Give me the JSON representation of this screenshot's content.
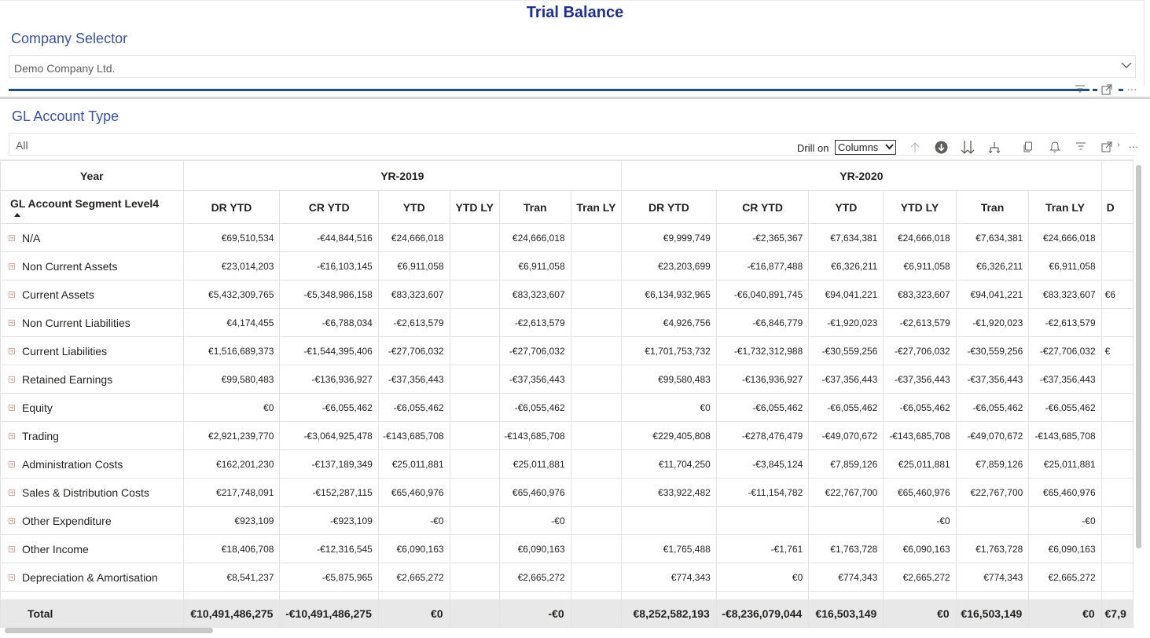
{
  "page": {
    "title": "Trial Balance"
  },
  "company_slicer": {
    "title": "Company Selector",
    "value": "Demo Company Ltd."
  },
  "gl_slicer": {
    "title": "GL Account Type",
    "value": "All"
  },
  "visual_toolbar": {
    "drill_label": "Drill on",
    "drill_value": "Columns",
    "more": "···"
  },
  "matrix": {
    "year_header_label": "Year",
    "row_header_label": "GL Account Segment Level4",
    "years": [
      "YR-2019",
      "YR-2020"
    ],
    "columns": [
      "DR YTD",
      "CR YTD",
      "YTD",
      "YTD LY",
      "Tran",
      "Tran LY",
      "DR YTD",
      "CR YTD",
      "YTD",
      "YTD LY",
      "Tran",
      "Tran LY",
      "D"
    ],
    "rows": [
      {
        "label": "N/A",
        "values": [
          "€69,510,534",
          "-€44,844,516",
          "€24,666,018",
          "",
          "€24,666,018",
          "",
          "€9,999,749",
          "-€2,365,367",
          "€7,634,381",
          "€24,666,018",
          "€7,634,381",
          "€24,666,018",
          ""
        ]
      },
      {
        "label": "Non Current Assets",
        "values": [
          "€23,014,203",
          "-€16,103,145",
          "€6,911,058",
          "",
          "€6,911,058",
          "",
          "€23,203,699",
          "-€16,877,488",
          "€6,326,211",
          "€6,911,058",
          "€6,326,211",
          "€6,911,058",
          ""
        ]
      },
      {
        "label": "Current Assets",
        "values": [
          "€5,432,309,765",
          "-€5,348,986,158",
          "€83,323,607",
          "",
          "€83,323,607",
          "",
          "€6,134,932,965",
          "-€6,040,891,745",
          "€94,041,221",
          "€83,323,607",
          "€94,041,221",
          "€83,323,607",
          "€6"
        ]
      },
      {
        "label": "Non Current Liabilities",
        "values": [
          "€4,174,455",
          "-€6,788,034",
          "-€2,613,579",
          "",
          "-€2,613,579",
          "",
          "€4,926,756",
          "-€6,846,779",
          "-€1,920,023",
          "-€2,613,579",
          "-€1,920,023",
          "-€2,613,579",
          ""
        ]
      },
      {
        "label": "Current Liabilities",
        "values": [
          "€1,516,689,373",
          "-€1,544,395,406",
          "-€27,706,032",
          "",
          "-€27,706,032",
          "",
          "€1,701,753,732",
          "-€1,732,312,988",
          "-€30,559,256",
          "-€27,706,032",
          "-€30,559,256",
          "-€27,706,032",
          "€"
        ]
      },
      {
        "label": "Retained Earnings",
        "values": [
          "€99,580,483",
          "-€136,936,927",
          "-€37,356,443",
          "",
          "-€37,356,443",
          "",
          "€99,580,483",
          "-€136,936,927",
          "-€37,356,443",
          "-€37,356,443",
          "-€37,356,443",
          "-€37,356,443",
          ""
        ]
      },
      {
        "label": "Equity",
        "values": [
          "€0",
          "-€6,055,462",
          "-€6,055,462",
          "",
          "-€6,055,462",
          "",
          "€0",
          "-€6,055,462",
          "-€6,055,462",
          "-€6,055,462",
          "-€6,055,462",
          "-€6,055,462",
          ""
        ]
      },
      {
        "label": "Trading",
        "values": [
          "€2,921,239,770",
          "-€3,064,925,478",
          "-€143,685,708",
          "",
          "-€143,685,708",
          "",
          "€229,405,808",
          "-€278,476,479",
          "-€49,070,672",
          "-€143,685,708",
          "-€49,070,672",
          "-€143,685,708",
          ""
        ]
      },
      {
        "label": "Administration Costs",
        "values": [
          "€162,201,230",
          "-€137,189,349",
          "€25,011,881",
          "",
          "€25,011,881",
          "",
          "€11,704,250",
          "-€3,845,124",
          "€7,859,126",
          "€25,011,881",
          "€7,859,126",
          "€25,011,881",
          ""
        ]
      },
      {
        "label": "Sales & Distribution Costs",
        "values": [
          "€217,748,091",
          "-€152,287,115",
          "€65,460,976",
          "",
          "€65,460,976",
          "",
          "€33,922,482",
          "-€11,154,782",
          "€22,767,700",
          "€65,460,976",
          "€22,767,700",
          "€65,460,976",
          ""
        ]
      },
      {
        "label": "Other Expenditure",
        "values": [
          "€923,109",
          "-€923,109",
          "-€0",
          "",
          "-€0",
          "",
          "",
          "",
          "",
          "-€0",
          "",
          "-€0",
          ""
        ]
      },
      {
        "label": "Other Income",
        "values": [
          "€18,406,708",
          "-€12,316,545",
          "€6,090,163",
          "",
          "€6,090,163",
          "",
          "€1,765,488",
          "-€1,761",
          "€1,763,728",
          "€6,090,163",
          "€1,763,728",
          "€6,090,163",
          ""
        ]
      },
      {
        "label": "Depreciation & Amortisation",
        "values": [
          "€8,541,237",
          "-€5,875,965",
          "€2,665,272",
          "",
          "€2,665,272",
          "",
          "€774,343",
          "€0",
          "€774,343",
          "€2,665,272",
          "€774,343",
          "€2,665,272",
          ""
        ]
      }
    ],
    "total": {
      "label": "Total",
      "values": [
        "€10,491,486,275",
        "-€10,491,486,275",
        "€0",
        "",
        "-€0",
        "",
        "€8,252,582,193",
        "-€8,236,079,044",
        "€16,503,149",
        "€0",
        "€16,503,149",
        "€0",
        "€7,9"
      ]
    }
  }
}
